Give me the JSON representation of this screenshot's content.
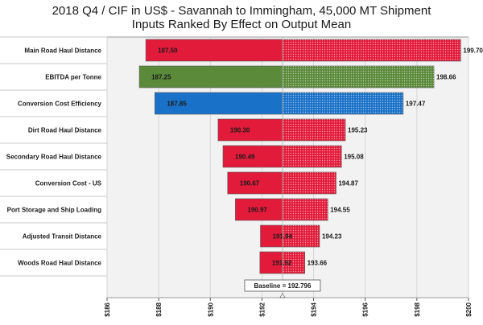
{
  "chart_data": {
    "type": "bar",
    "orientation": "horizontal",
    "title": "2018 Q4 / CIF in US$ - Savannah to Immingham, 45,000 MT Shipment",
    "subtitle": "Inputs Ranked By Effect on Output Mean",
    "baseline_label": "Baseline = 192.796",
    "baseline": 192.796,
    "xlim": [
      186,
      200
    ],
    "xticks": [
      186,
      188,
      190,
      192,
      194,
      196,
      198,
      200
    ],
    "xtick_labels": [
      "$186",
      "$188",
      "$190",
      "$192",
      "$194",
      "$196",
      "$198",
      "$200"
    ],
    "grid": true,
    "categories": [
      "Main Road Haul Distance",
      "EBITDA per Tonne",
      "Conversion Cost Efficiency",
      "Dirt Road Haul Distance",
      "Secondary Road Haul Distance",
      "Conversion Cost - US",
      "Port Storage and Ship Loading",
      "Adjusted Transit Distance",
      "Woods Road Haul Distance"
    ],
    "low": [
      187.5,
      187.25,
      187.85,
      190.3,
      190.49,
      190.67,
      190.97,
      191.94,
      191.92
    ],
    "high": [
      199.7,
      198.66,
      197.47,
      195.23,
      195.08,
      194.87,
      194.55,
      194.23,
      193.66
    ],
    "low_labels": [
      "187.50",
      "187.25",
      "187.85",
      "190.30",
      "190.49",
      "190.67",
      "190.97",
      "191.94",
      "191.92"
    ],
    "high_labels": [
      "199.70",
      "198.66",
      "197.47",
      "195.23",
      "195.08",
      "194.87",
      "194.55",
      "194.23",
      "193.66"
    ],
    "colors": [
      "#e31b3a",
      "#5a8a3a",
      "#1a72c8",
      "#e31b3a",
      "#e31b3a",
      "#e31b3a",
      "#e31b3a",
      "#e31b3a",
      "#e31b3a"
    ],
    "plot_background": "#f2f2f2"
  }
}
